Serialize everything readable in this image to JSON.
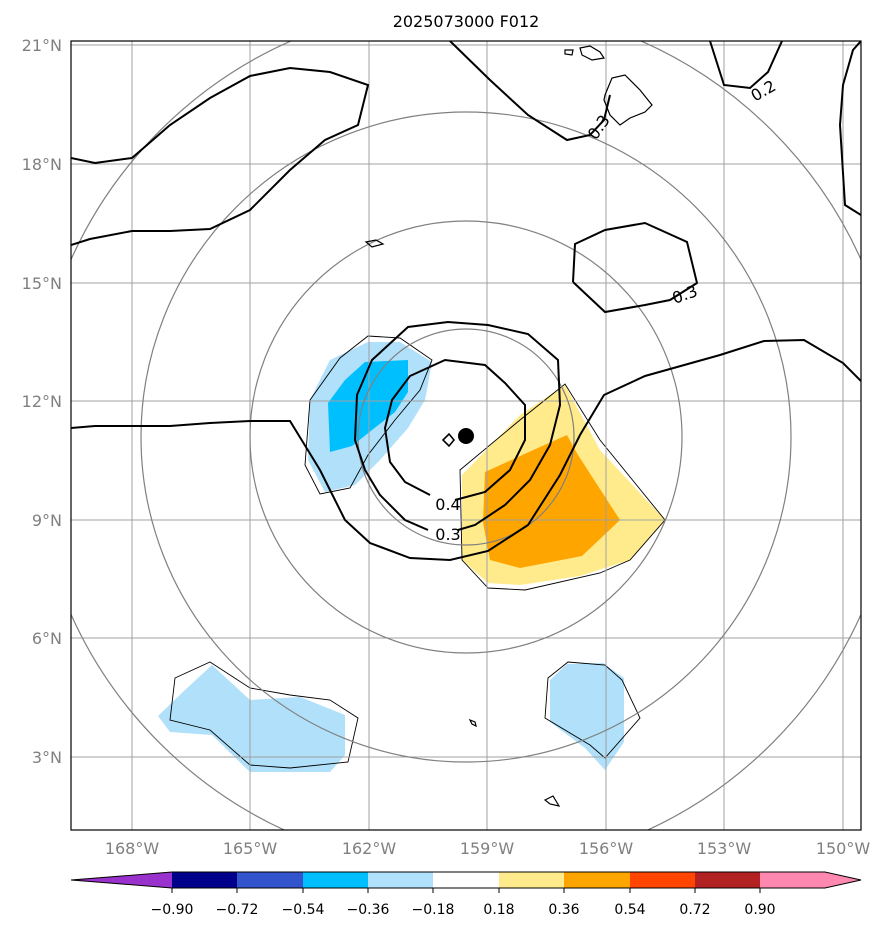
{
  "title": "2025073000 F012",
  "lat_labels": [
    "21°N",
    "18°N",
    "15°N",
    "12°N",
    "9°N",
    "6°N",
    "3°N"
  ],
  "lon_labels": [
    "168°W",
    "165°W",
    "162°W",
    "159°W",
    "156°W",
    "153°W",
    "150°W"
  ],
  "contour_labels": [
    "0.4",
    "0.3",
    "0.3",
    "0.3",
    "0.2"
  ],
  "colorbar": {
    "ticks": [
      "−0.90",
      "−0.72",
      "−0.54",
      "−0.36",
      "−0.18",
      "0.18",
      "0.36",
      "0.54",
      "0.72",
      "0.90"
    ],
    "colors": [
      "#9932cc",
      "#00008b",
      "#3454cc",
      "#00bfff",
      "#b0e0fa",
      "#ffffff",
      "#ffeb8c",
      "#ffa500",
      "#ff4500",
      "#b22222",
      "#ff88b0"
    ]
  },
  "map": {
    "extent": {
      "lon": [
        "169.5°W",
        "149.5°W"
      ],
      "lat": [
        "1°N",
        "21°N"
      ]
    },
    "grid": true,
    "storm_center": "11°N, 159.4°W"
  }
}
